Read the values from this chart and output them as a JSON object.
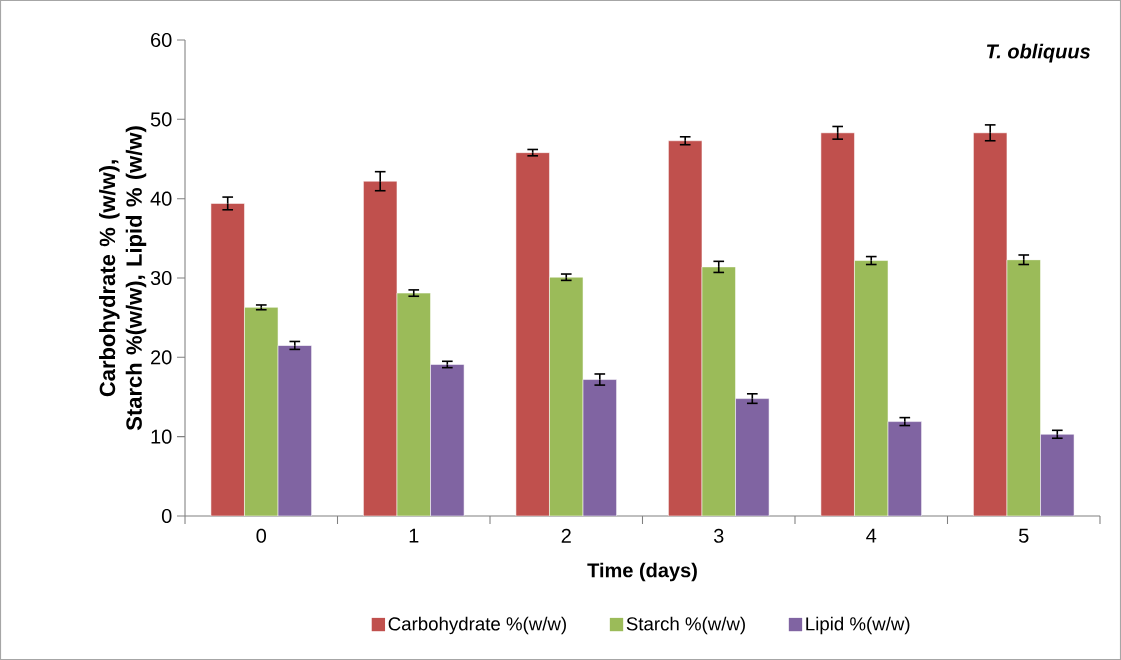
{
  "chart_data": {
    "type": "bar",
    "title": "T. obliquus",
    "xlabel": "Time (days)",
    "ylabel": "Carbohydrate % (w/w), Starch %(w/w), Lipid % (w/w)",
    "categories": [
      "0",
      "1",
      "2",
      "3",
      "4",
      "5"
    ],
    "series": [
      {
        "name": "Carbohydrate %(w/w)",
        "color": "#c0504d",
        "values": [
          39.4,
          42.2,
          45.8,
          47.3,
          48.3,
          48.3
        ],
        "errors": [
          0.8,
          1.2,
          0.4,
          0.5,
          0.8,
          1.0
        ]
      },
      {
        "name": "Starch %(w/w)",
        "color": "#9bbb59",
        "values": [
          26.3,
          28.1,
          30.1,
          31.4,
          32.2,
          32.3
        ],
        "errors": [
          0.3,
          0.4,
          0.4,
          0.7,
          0.5,
          0.6
        ]
      },
      {
        "name": "Lipid  %(w/w)",
        "color": "#8064a2",
        "values": [
          21.5,
          19.1,
          17.2,
          14.8,
          11.9,
          10.3
        ],
        "errors": [
          0.5,
          0.4,
          0.7,
          0.6,
          0.5,
          0.5
        ]
      }
    ],
    "ylim": [
      0,
      60
    ],
    "yticks": [
      0,
      10,
      20,
      30,
      40,
      50,
      60
    ],
    "grid": false,
    "legend": "bottom"
  }
}
